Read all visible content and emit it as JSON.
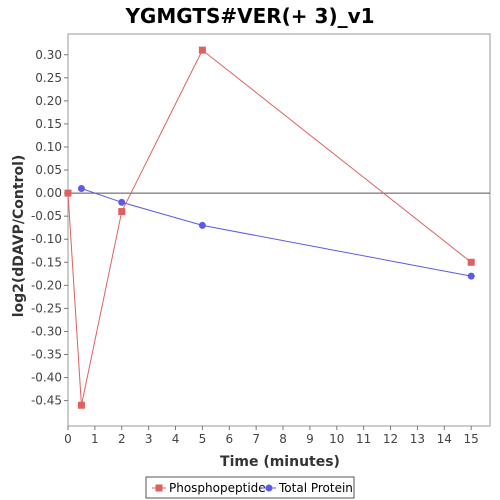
{
  "chart_data": {
    "type": "line",
    "title": "YGMGTS#VER(+ 3)_v1",
    "xlabel": "Time (minutes)",
    "ylabel": "log2(dDAVP/Control)",
    "xlim": [
      0,
      15.7
    ],
    "ylim": [
      -0.505,
      0.345
    ],
    "x_ticks": [
      0,
      1,
      2,
      3,
      4,
      5,
      6,
      7,
      8,
      9,
      10,
      11,
      12,
      13,
      14,
      15
    ],
    "y_ticks": [
      0.3,
      0.25,
      0.2,
      0.15,
      0.1,
      0.05,
      0.0,
      -0.05,
      -0.1,
      -0.15,
      -0.2,
      -0.25,
      -0.3,
      -0.35,
      -0.4,
      -0.45
    ],
    "zero_line": true,
    "grid": false,
    "legend_position": "bottom",
    "series": [
      {
        "name": "Phosphopeptide",
        "color": "#E06060",
        "marker": "square",
        "x": [
          0,
          0.5,
          2,
          5,
          15
        ],
        "y": [
          0.0,
          -0.46,
          -0.04,
          0.31,
          -0.15
        ]
      },
      {
        "name": "Total Protein",
        "color": "#5B5BE8",
        "marker": "circle",
        "x": [
          0.5,
          2,
          5,
          15
        ],
        "y": [
          0.01,
          -0.02,
          -0.07,
          -0.18
        ]
      }
    ]
  }
}
